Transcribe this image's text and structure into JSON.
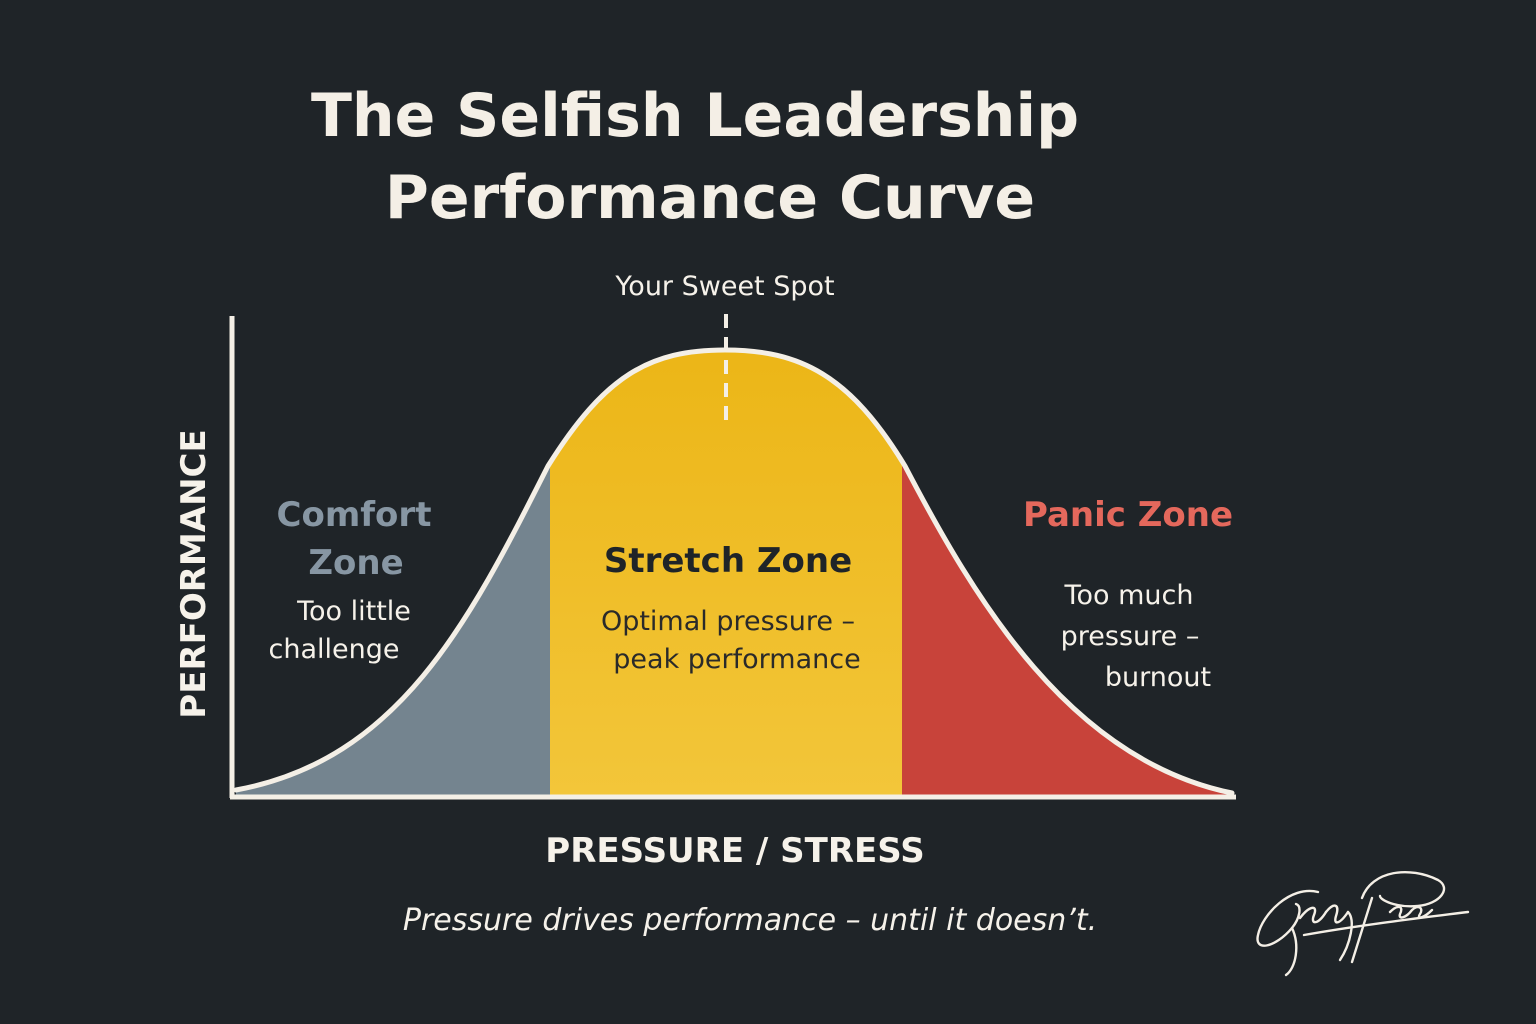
{
  "title": {
    "line1": "The Selfish Leadership",
    "line2": "Performance Curve"
  },
  "axes": {
    "y_label": "PERFORMANCE",
    "x_label": "PRESSURE / STRESS"
  },
  "peak": {
    "label": "Your Sweet Spot"
  },
  "zones": {
    "comfort": {
      "title_line1": "Comfort",
      "title_line2": "Zone",
      "desc_line1": "Too little",
      "desc_line2": "challenge",
      "color": "#74848f",
      "title_color": "#8796a3"
    },
    "stretch": {
      "title": "Stretch Zone",
      "desc_line1": "Optimal pressure –",
      "desc_line2": "peak performance",
      "color": "#f0bd22",
      "title_color": "#1f2428"
    },
    "panic": {
      "title": "Panic Zone",
      "desc_line1": "Too much",
      "desc_line2": "pressure –",
      "desc_line3": "burnout",
      "color": "#c8433a",
      "title_color": "#e4685c"
    }
  },
  "caption": "Pressure drives performance – until it doesn’t.",
  "signature": {
    "text": "Gary Parsons"
  }
}
